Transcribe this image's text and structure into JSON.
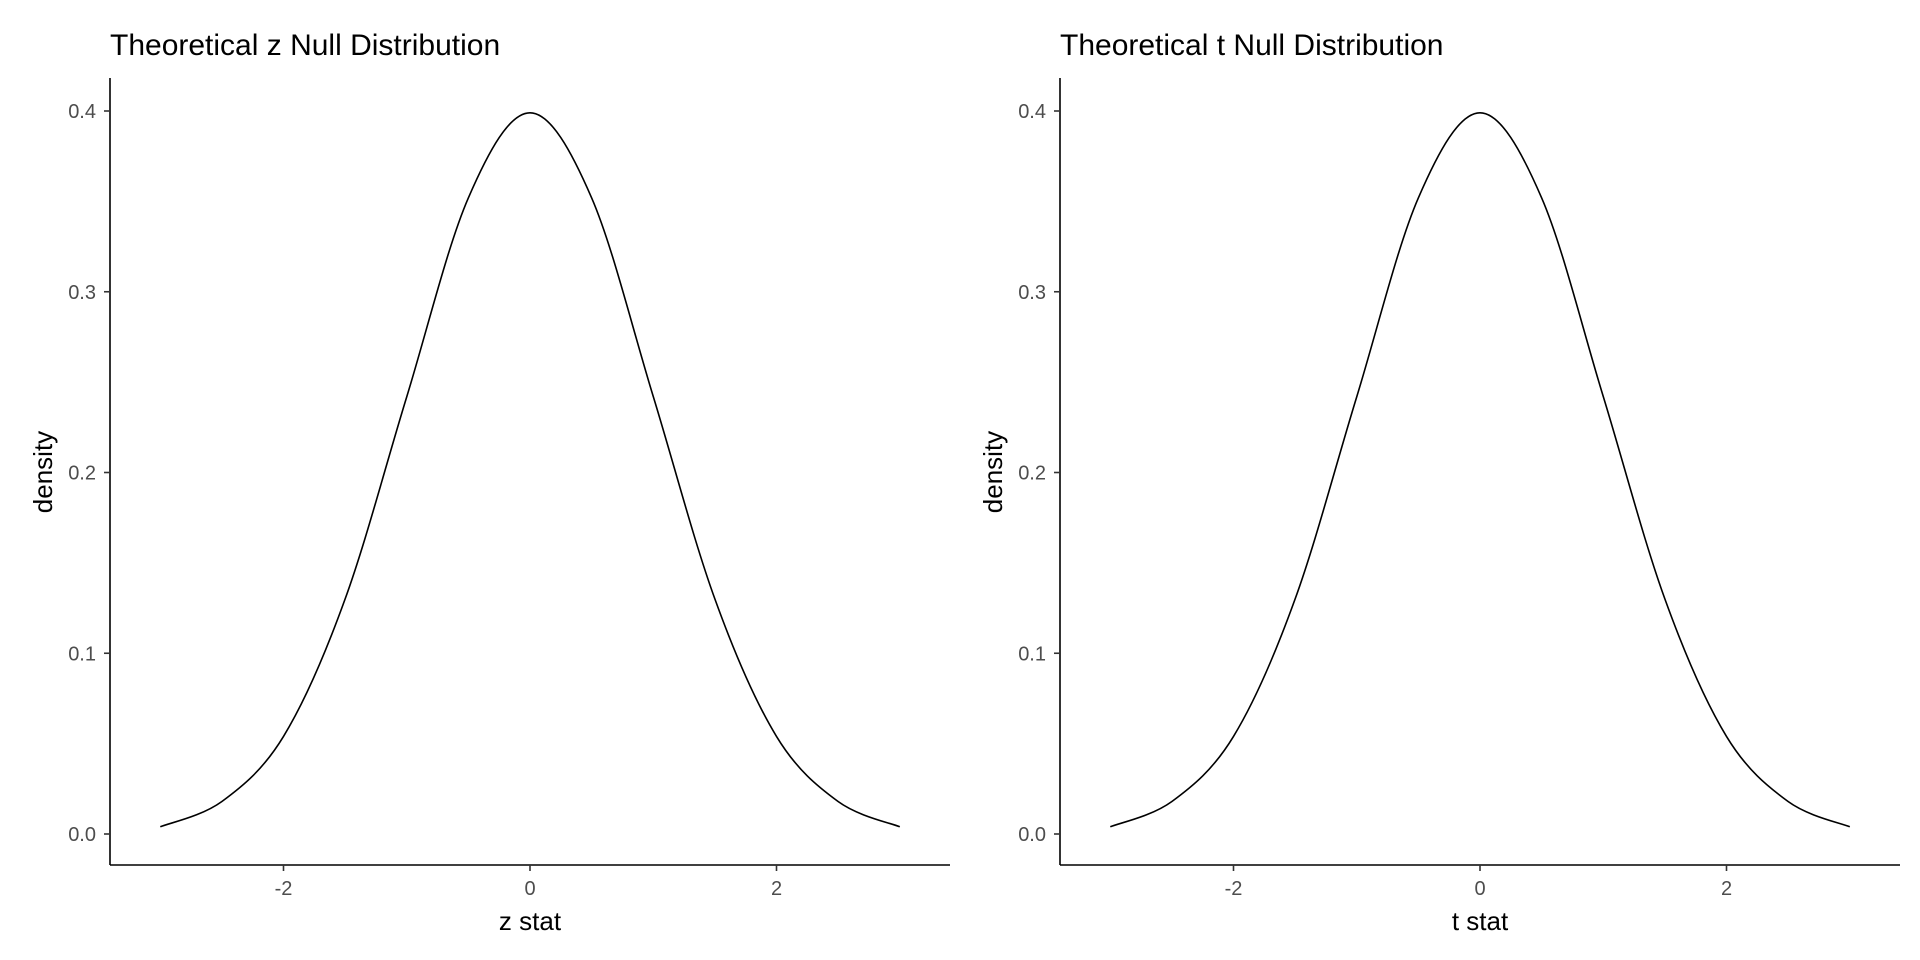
{
  "chart_data": [
    {
      "type": "line",
      "title": "Theoretical z Null Distribution",
      "xlabel": "z stat",
      "ylabel": "density",
      "xlim": [
        -3.1,
        3.1
      ],
      "ylim": [
        0.0,
        0.4
      ],
      "x_ticks": [
        -2,
        0,
        2
      ],
      "y_ticks": [
        0.0,
        0.1,
        0.2,
        0.3,
        0.4
      ],
      "x_tick_labels": [
        "-2",
        "0",
        "2"
      ],
      "y_tick_labels": [
        "0.0",
        "0.1",
        "0.2",
        "0.3",
        "0.4"
      ],
      "grid": false,
      "series": [
        {
          "x": [
            -3.0,
            -2.5,
            -2.0,
            -1.5,
            -1.0,
            -0.5,
            0.0,
            0.5,
            1.0,
            1.5,
            2.0,
            2.5,
            3.0
          ],
          "values": [
            0.004,
            0.018,
            0.054,
            0.13,
            0.242,
            0.352,
            0.399,
            0.352,
            0.242,
            0.13,
            0.054,
            0.018,
            0.004
          ]
        }
      ]
    },
    {
      "type": "line",
      "title": "Theoretical t Null Distribution",
      "xlabel": "t stat",
      "ylabel": "density",
      "xlim": [
        -3.1,
        3.1
      ],
      "ylim": [
        0.0,
        0.4
      ],
      "x_ticks": [
        -2,
        0,
        2
      ],
      "y_ticks": [
        0.0,
        0.1,
        0.2,
        0.3,
        0.4
      ],
      "x_tick_labels": [
        "-2",
        "0",
        "2"
      ],
      "y_tick_labels": [
        "0.0",
        "0.1",
        "0.2",
        "0.3",
        "0.4"
      ],
      "grid": false,
      "series": [
        {
          "x": [
            -3.0,
            -2.5,
            -2.0,
            -1.5,
            -1.0,
            -0.5,
            0.0,
            0.5,
            1.0,
            1.5,
            2.0,
            2.5,
            3.0
          ],
          "values": [
            0.004,
            0.018,
            0.054,
            0.13,
            0.242,
            0.352,
            0.399,
            0.352,
            0.242,
            0.13,
            0.054,
            0.018,
            0.004
          ]
        }
      ]
    }
  ]
}
